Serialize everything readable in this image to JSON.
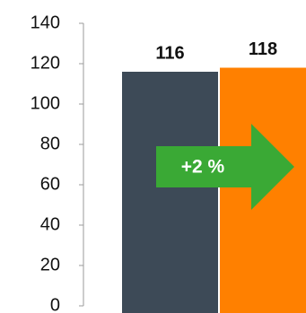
{
  "chart_data": {
    "type": "bar",
    "categories": [
      "",
      ""
    ],
    "values": [
      116,
      118
    ],
    "value_labels": [
      "116",
      "118"
    ],
    "ylim": [
      0,
      140
    ],
    "yticks": [
      "0",
      "20",
      "40",
      "60",
      "80",
      "100",
      "120",
      "140"
    ],
    "grid": false,
    "legend": "none",
    "annotation": {
      "text": "+2 %",
      "shape": "arrow-right",
      "color": "#3aa935"
    },
    "colors": {
      "bar_1": "#3d4a57",
      "bar_2": "#ff8000",
      "axis": "#9b9b9b",
      "text": "#111111"
    }
  }
}
